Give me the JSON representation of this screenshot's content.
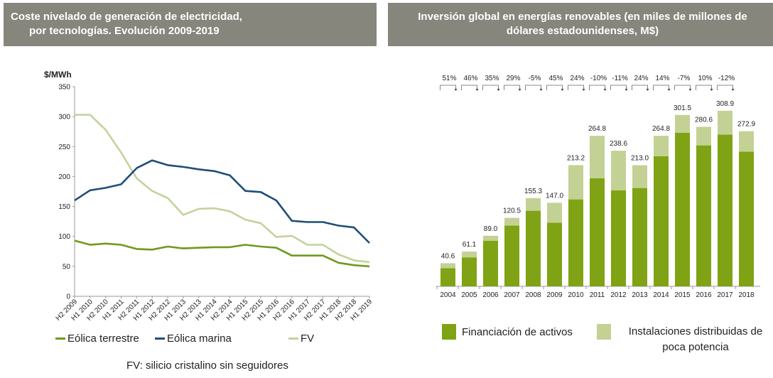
{
  "left_panel": {
    "title_line1": "Coste nivelado de generación de electricidad,",
    "title_line2": "por tecnologías. Evolución 2009-2019",
    "footnote": "FV: silicio cristalino sin seguidores"
  },
  "right_panel": {
    "title": "Inversión global en energías renovables (en miles de millones de dólares estadounidenses, M$)"
  },
  "chart_data": [
    {
      "type": "line",
      "ylabel": "$/MWh",
      "ylim": [
        0,
        350
      ],
      "yticks": [
        0,
        50,
        100,
        150,
        200,
        250,
        300,
        350
      ],
      "grid": false,
      "legend": "bottom",
      "categories": [
        "H2 2009",
        "H1 2010",
        "H2 2010",
        "H1 2011",
        "H2 2011",
        "H1 2012",
        "H2 2012",
        "H1 2013",
        "H2 2013",
        "H1 2014",
        "H2 2014",
        "H1 2015",
        "H2 2015",
        "H1 2016",
        "H2 2016",
        "H1 2017",
        "H2 2017",
        "H1 2018",
        "H2 2018",
        "H1 2019"
      ],
      "series": [
        {
          "name": "Eólica terrestre",
          "color": "#6e9a1e",
          "values": [
            93,
            86,
            88,
            86,
            79,
            78,
            83,
            80,
            81,
            82,
            82,
            86,
            83,
            81,
            68,
            68,
            68,
            56,
            52,
            50
          ]
        },
        {
          "name": "Eólica marina",
          "color": "#1f4e79",
          "values": [
            160,
            177,
            181,
            187,
            214,
            227,
            219,
            216,
            212,
            209,
            202,
            176,
            174,
            160,
            126,
            124,
            124,
            118,
            115,
            89
          ]
        },
        {
          "name": "FV",
          "color": "#c3d39b",
          "values": [
            303,
            303,
            278,
            240,
            197,
            176,
            164,
            136,
            146,
            147,
            142,
            128,
            122,
            99,
            101,
            86,
            86,
            70,
            60,
            57
          ]
        }
      ]
    },
    {
      "type": "bar",
      "stacked": true,
      "legend": "bottom",
      "categories": [
        "2004",
        "2005",
        "2006",
        "2007",
        "2008",
        "2009",
        "2010",
        "2011",
        "2012",
        "2013",
        "2014",
        "2015",
        "2016",
        "2017",
        "2018"
      ],
      "totals": [
        "40.6",
        "61.1",
        "89.0",
        "120.5",
        "155.3",
        "147.0",
        "213.2",
        "264.8",
        "238.6",
        "213.0",
        "264.8",
        "301.5",
        "280.6",
        "308.9",
        "272.9"
      ],
      "changes": [
        "51%",
        "46%",
        "35%",
        "29%",
        "-5%",
        "45%",
        "24%",
        "-10%",
        "-11%",
        "24%",
        "14%",
        "-7%",
        "10%",
        "-12%"
      ],
      "series": [
        {
          "name": "Financiación de activos",
          "color": "#7fa314",
          "values": [
            32,
            51,
            80,
            107,
            133,
            112,
            153,
            190,
            169,
            173,
            229,
            270,
            248,
            267,
            237
          ]
        },
        {
          "name": "Instalaciones distribuidas de poca potencia",
          "color": "#c3d195",
          "values": [
            8.6,
            10.1,
            9.0,
            13.5,
            22.3,
            35.0,
            60.2,
            74.8,
            69.6,
            40.0,
            35.8,
            31.5,
            32.6,
            41.9,
            35.9
          ]
        }
      ]
    }
  ]
}
